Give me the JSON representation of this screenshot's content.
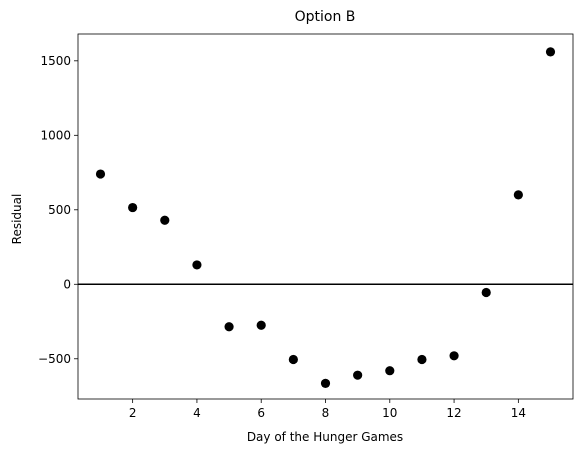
{
  "chart_data": {
    "type": "scatter",
    "title": "Option B",
    "xlabel": "Day of the Hunger Games",
    "ylabel": "Residual",
    "xlim": [
      0.3,
      15.7
    ],
    "ylim": [
      -770,
      1680
    ],
    "xticks": [
      2,
      4,
      6,
      8,
      10,
      12,
      14
    ],
    "yticks": [
      -500,
      0,
      500,
      1000,
      1500
    ],
    "xtick_labels": [
      "2",
      "4",
      "6",
      "8",
      "10",
      "12",
      "14"
    ],
    "ytick_labels": [
      "−500",
      "0",
      "500",
      "1000",
      "1500"
    ],
    "hline": 0,
    "grid": false,
    "marker_color": "#000000",
    "series": [
      {
        "x": [
          1,
          2,
          3,
          4,
          5,
          6,
          7,
          8,
          9,
          10,
          11,
          12,
          13,
          14,
          15
        ],
        "y": [
          740,
          515,
          430,
          130,
          -285,
          -275,
          -505,
          -665,
          -610,
          -580,
          -505,
          -480,
          -55,
          600,
          1560
        ]
      }
    ]
  }
}
